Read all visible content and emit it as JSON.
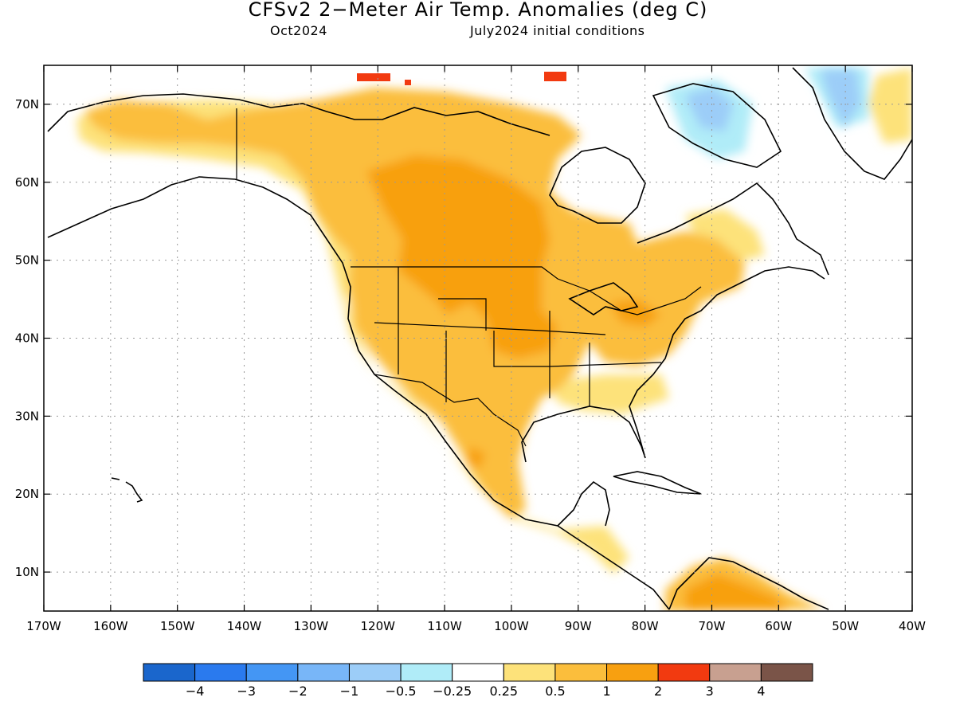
{
  "title": "CFSv2 2−Meter Air Temp. Anomalies (deg C)",
  "subtitle_left": "Oct2024",
  "subtitle_right": "July2024 initial conditions",
  "map": {
    "lon_range": [
      -170,
      -40
    ],
    "lat_range": [
      5,
      75
    ],
    "gridlines": true,
    "lat_ticks": [
      {
        "value": 70,
        "label": "70N"
      },
      {
        "value": 60,
        "label": "60N"
      },
      {
        "value": 50,
        "label": "50N"
      },
      {
        "value": 40,
        "label": "40N"
      },
      {
        "value": 30,
        "label": "30N"
      },
      {
        "value": 20,
        "label": "20N"
      },
      {
        "value": 10,
        "label": "10N"
      }
    ],
    "lon_ticks": [
      {
        "value": -170,
        "label": "170W"
      },
      {
        "value": -160,
        "label": "160W"
      },
      {
        "value": -150,
        "label": "150W"
      },
      {
        "value": -140,
        "label": "140W"
      },
      {
        "value": -130,
        "label": "130W"
      },
      {
        "value": -120,
        "label": "120W"
      },
      {
        "value": -110,
        "label": "110W"
      },
      {
        "value": -100,
        "label": "100W"
      },
      {
        "value": -90,
        "label": "90W"
      },
      {
        "value": -80,
        "label": "80W"
      },
      {
        "value": -70,
        "label": "70W"
      },
      {
        "value": -60,
        "label": "60W"
      },
      {
        "value": -50,
        "label": "50W"
      },
      {
        "value": -40,
        "label": "40W"
      }
    ]
  },
  "colorbar": {
    "colors": [
      "#1a66cc",
      "#2a7aee",
      "#4496f4",
      "#78b6f8",
      "#9ccdf8",
      "#b0ecf8",
      "#ffffff",
      "#fde27a",
      "#fbbe3c",
      "#f8a010",
      "#f23a10",
      "#c8a090",
      "#7a5448"
    ],
    "labels": [
      "−4",
      "−3",
      "−2",
      "−1",
      "−0.5",
      "−0.25",
      "0.25",
      "0.5",
      "1",
      "2",
      "3",
      "4"
    ]
  }
}
